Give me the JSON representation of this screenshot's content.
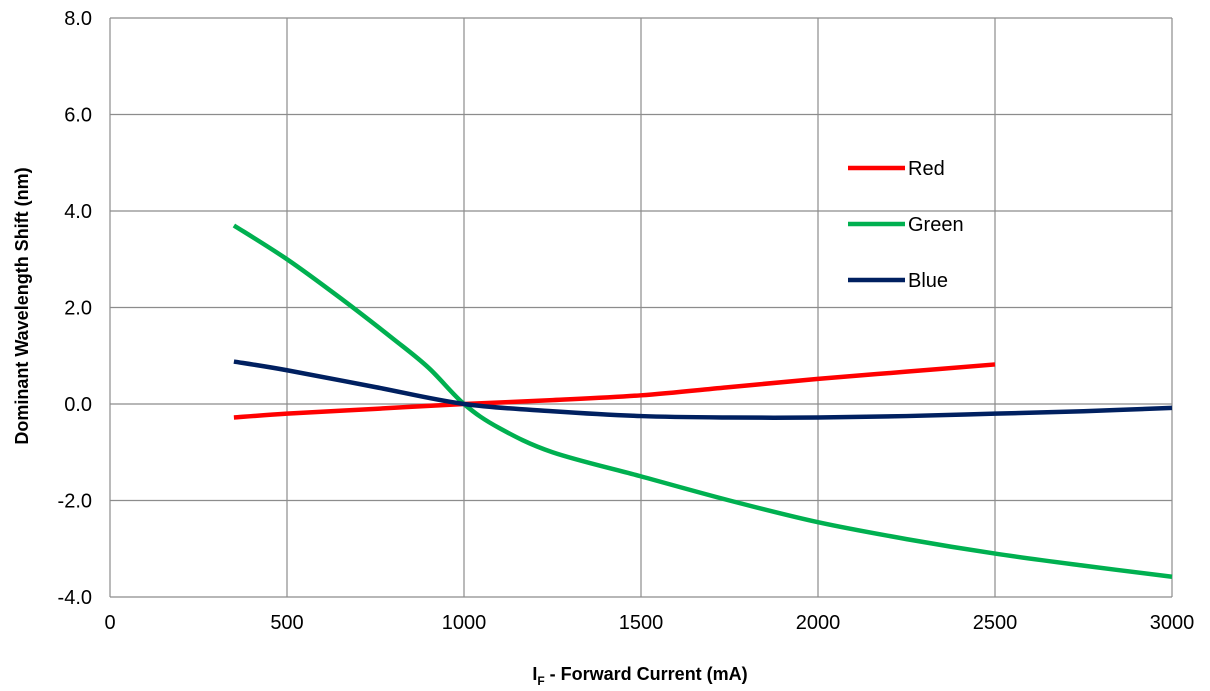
{
  "chart_data": {
    "type": "line",
    "title": "",
    "xlabel_main": "I",
    "xlabel_sub": "F",
    "xlabel_rest": " - Forward Current (mA)",
    "ylabel": "Dominant Wavelength Shift (nm)",
    "xlim": [
      0,
      3000
    ],
    "ylim": [
      -4.0,
      8.0
    ],
    "x_ticks": [
      0,
      500,
      1000,
      1500,
      2000,
      2500,
      3000
    ],
    "y_ticks": [
      -4.0,
      -2.0,
      0.0,
      2.0,
      4.0,
      6.0,
      8.0
    ],
    "x_tick_labels": [
      "0",
      "500",
      "1000",
      "1500",
      "2000",
      "2500",
      "3000"
    ],
    "y_tick_labels": [
      "-4.0",
      "-2.0",
      "0.0",
      "2.0",
      "4.0",
      "6.0",
      "8.0"
    ],
    "grid": true,
    "legend_position": "upper-right",
    "series": [
      {
        "name": "Red",
        "color": "#ff0000",
        "points": [
          [
            350,
            -0.28
          ],
          [
            500,
            -0.2
          ],
          [
            750,
            -0.1
          ],
          [
            1000,
            0.0
          ],
          [
            1250,
            0.08
          ],
          [
            1500,
            0.18
          ],
          [
            1750,
            0.35
          ],
          [
            2000,
            0.52
          ],
          [
            2250,
            0.67
          ],
          [
            2500,
            0.82
          ]
        ]
      },
      {
        "name": "Green",
        "color": "#00b050",
        "points": [
          [
            350,
            3.7
          ],
          [
            500,
            3.0
          ],
          [
            650,
            2.2
          ],
          [
            800,
            1.35
          ],
          [
            900,
            0.75
          ],
          [
            1000,
            0.0
          ],
          [
            1100,
            -0.5
          ],
          [
            1250,
            -1.0
          ],
          [
            1500,
            -1.5
          ],
          [
            1750,
            -2.0
          ],
          [
            2000,
            -2.45
          ],
          [
            2250,
            -2.8
          ],
          [
            2500,
            -3.1
          ],
          [
            2750,
            -3.35
          ],
          [
            3000,
            -3.58
          ]
        ]
      },
      {
        "name": "Blue",
        "color": "#002060",
        "points": [
          [
            350,
            0.88
          ],
          [
            500,
            0.7
          ],
          [
            750,
            0.35
          ],
          [
            1000,
            0.0
          ],
          [
            1250,
            -0.15
          ],
          [
            1500,
            -0.25
          ],
          [
            1750,
            -0.28
          ],
          [
            2000,
            -0.28
          ],
          [
            2250,
            -0.25
          ],
          [
            2500,
            -0.2
          ],
          [
            2750,
            -0.15
          ],
          [
            3000,
            -0.08
          ]
        ]
      }
    ]
  }
}
